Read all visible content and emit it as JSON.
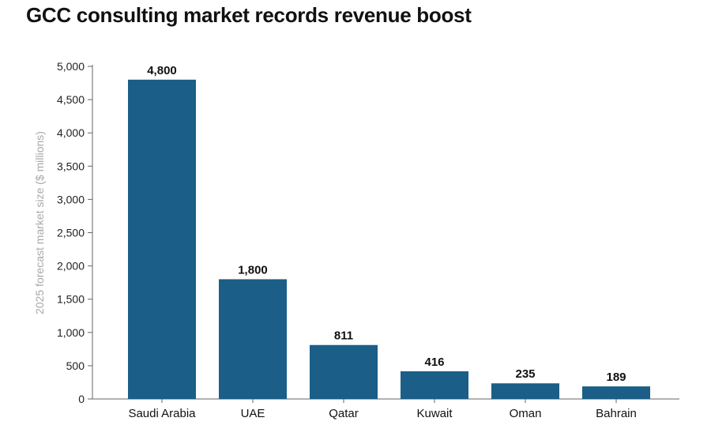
{
  "chart_data": {
    "type": "bar",
    "title": "GCC consulting market records revenue boost",
    "xlabel": "",
    "ylabel": "2025 forecast market size ($ millions)",
    "categories": [
      "Saudi Arabia",
      "UAE",
      "Qatar",
      "Kuwait",
      "Oman",
      "Bahrain"
    ],
    "values": [
      4800,
      1800,
      811,
      416,
      235,
      189
    ],
    "data_labels": [
      "4,800",
      "1,800",
      "811",
      "416",
      "235",
      "189"
    ],
    "ylim": [
      0,
      5000
    ],
    "yticks": [
      0,
      500,
      1000,
      1500,
      2000,
      2500,
      3000,
      3500,
      4000,
      4500,
      5000
    ],
    "ytick_labels": [
      "0",
      "500",
      "1,000",
      "1,500",
      "2,000",
      "2,500",
      "3,000",
      "3,500",
      "4,000",
      "4,500",
      "5,000"
    ],
    "grid": false,
    "legend": "none",
    "colors": {
      "bar": "#1b5e87",
      "axis": "#666666",
      "axis_title": "#a8a8a8"
    }
  }
}
